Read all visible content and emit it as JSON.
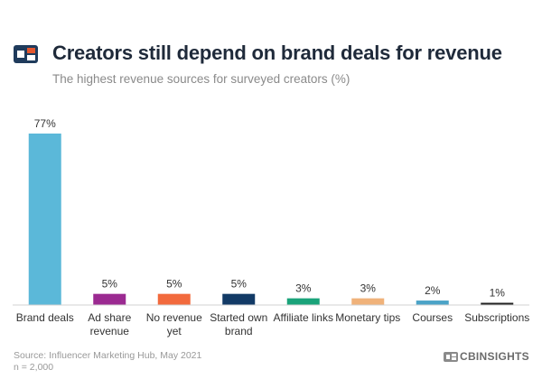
{
  "header": {
    "logo_icon": "cb-insights-logo-icon",
    "title": "Creators still depend on brand deals for revenue",
    "subtitle": "The highest revenue sources for surveyed creators (%)"
  },
  "footer": {
    "source": "Source: Influencer Marketing Hub, May 2021",
    "sample": "n = 2,000",
    "brand": "CBINSIGHTS"
  },
  "chart_data": {
    "type": "bar",
    "title": "Creators still depend on brand deals for revenue",
    "subtitle": "The highest revenue sources for surveyed creators (%)",
    "xlabel": "",
    "ylabel": "",
    "ylim": [
      0,
      77
    ],
    "grid": false,
    "legend": "none",
    "categories": [
      [
        "Brand deals"
      ],
      [
        "Ad share",
        "revenue"
      ],
      [
        "No revenue",
        "yet"
      ],
      [
        "Started own",
        "brand"
      ],
      [
        "Affiliate links"
      ],
      [
        "Monetary tips"
      ],
      [
        "Courses"
      ],
      [
        "Subscriptions"
      ]
    ],
    "values": [
      77,
      5,
      5,
      5,
      3,
      3,
      2,
      1
    ],
    "value_labels": [
      "77%",
      "5%",
      "5%",
      "5%",
      "3%",
      "3%",
      "2%",
      "1%"
    ],
    "colors": [
      "#5bb8d9",
      "#9b2a91",
      "#f26a3d",
      "#123a66",
      "#1aa37a",
      "#f0b27a",
      "#4ba3c7",
      "#222222"
    ]
  }
}
